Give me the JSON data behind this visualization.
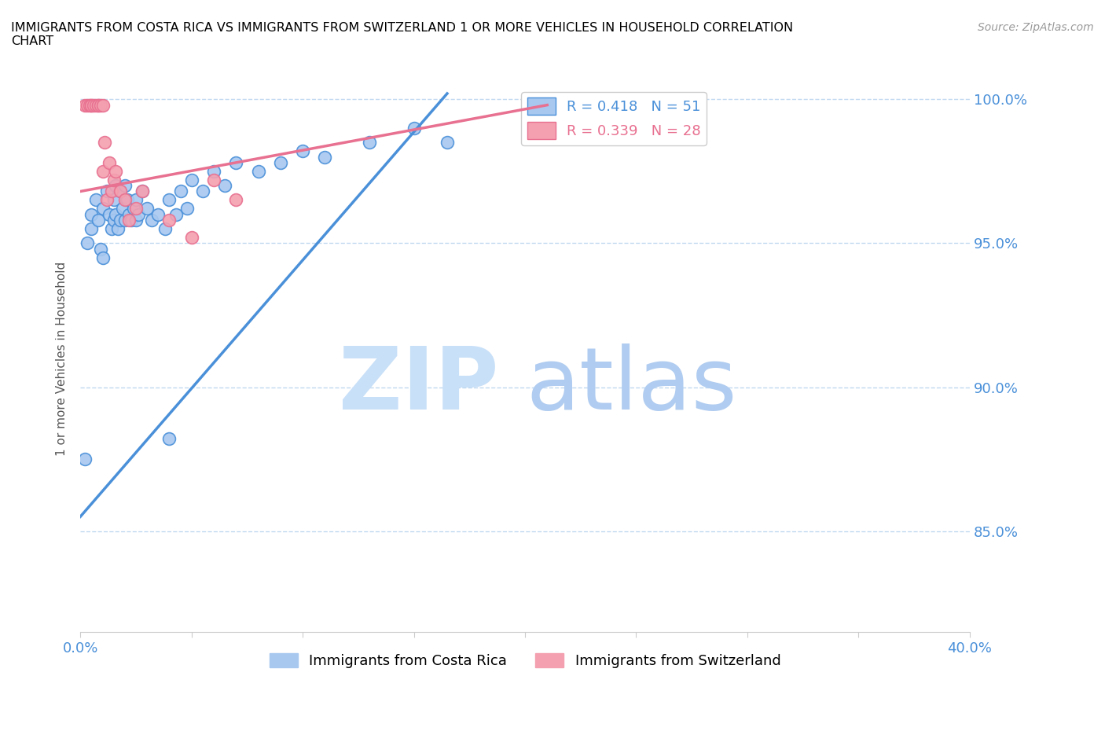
{
  "title": "IMMIGRANTS FROM COSTA RICA VS IMMIGRANTS FROM SWITZERLAND 1 OR MORE VEHICLES IN HOUSEHOLD CORRELATION\nCHART",
  "source": "Source: ZipAtlas.com",
  "ylabel": "1 or more Vehicles in Household",
  "xlim": [
    0.0,
    0.4
  ],
  "ylim": [
    0.815,
    1.005
  ],
  "yticks": [
    0.85,
    0.9,
    0.95,
    1.0
  ],
  "ytick_labels": [
    "85.0%",
    "90.0%",
    "95.0%",
    "100.0%"
  ],
  "xticks": [
    0.0,
    0.05,
    0.1,
    0.15,
    0.2,
    0.25,
    0.3,
    0.35,
    0.4
  ],
  "xtick_labels": [
    "0.0%",
    "",
    "",
    "",
    "",
    "",
    "",
    "",
    "40.0%"
  ],
  "legend_blue_r": "R = 0.418",
  "legend_blue_n": "N = 51",
  "legend_pink_r": "R = 0.339",
  "legend_pink_n": "N = 28",
  "blue_color": "#a8c8f0",
  "pink_color": "#f4a0b0",
  "blue_line_color": "#4a90d9",
  "pink_line_color": "#e87090",
  "watermark_color": "#d0e8f8",
  "tick_color": "#4a90d9",
  "grid_color": "#c0d8f0",
  "costa_rica_x": [
    0.002,
    0.003,
    0.005,
    0.005,
    0.007,
    0.008,
    0.009,
    0.01,
    0.01,
    0.012,
    0.013,
    0.014,
    0.015,
    0.015,
    0.016,
    0.016,
    0.017,
    0.018,
    0.018,
    0.019,
    0.02,
    0.02,
    0.021,
    0.022,
    0.023,
    0.024,
    0.025,
    0.025,
    0.026,
    0.028,
    0.03,
    0.032,
    0.035,
    0.038,
    0.04,
    0.043,
    0.045,
    0.048,
    0.05,
    0.055,
    0.06,
    0.065,
    0.07,
    0.08,
    0.09,
    0.1,
    0.11,
    0.13,
    0.15,
    0.165,
    0.04
  ],
  "costa_rica_y": [
    0.875,
    0.95,
    0.96,
    0.955,
    0.965,
    0.958,
    0.948,
    0.962,
    0.945,
    0.968,
    0.96,
    0.955,
    0.965,
    0.958,
    0.97,
    0.96,
    0.955,
    0.968,
    0.958,
    0.962,
    0.97,
    0.958,
    0.965,
    0.96,
    0.958,
    0.962,
    0.965,
    0.958,
    0.96,
    0.968,
    0.962,
    0.958,
    0.96,
    0.955,
    0.965,
    0.96,
    0.968,
    0.962,
    0.972,
    0.968,
    0.975,
    0.97,
    0.978,
    0.975,
    0.978,
    0.982,
    0.98,
    0.985,
    0.99,
    0.985,
    0.882
  ],
  "switzerland_x": [
    0.002,
    0.003,
    0.004,
    0.005,
    0.005,
    0.006,
    0.007,
    0.008,
    0.008,
    0.009,
    0.01,
    0.01,
    0.011,
    0.012,
    0.013,
    0.014,
    0.015,
    0.016,
    0.018,
    0.02,
    0.022,
    0.025,
    0.028,
    0.04,
    0.05,
    0.21,
    0.06,
    0.07
  ],
  "switzerland_y": [
    0.998,
    0.998,
    0.998,
    0.998,
    0.998,
    0.998,
    0.998,
    0.998,
    0.998,
    0.998,
    0.998,
    0.975,
    0.985,
    0.965,
    0.978,
    0.968,
    0.972,
    0.975,
    0.968,
    0.965,
    0.958,
    0.962,
    0.968,
    0.958,
    0.952,
    0.998,
    0.972,
    0.965
  ],
  "cr_trend_x0": 0.0,
  "cr_trend_x1": 0.165,
  "cr_trend_y0": 0.855,
  "cr_trend_y1": 1.002,
  "sw_trend_x0": 0.0,
  "sw_trend_x1": 0.21,
  "sw_trend_y0": 0.968,
  "sw_trend_y1": 0.998
}
